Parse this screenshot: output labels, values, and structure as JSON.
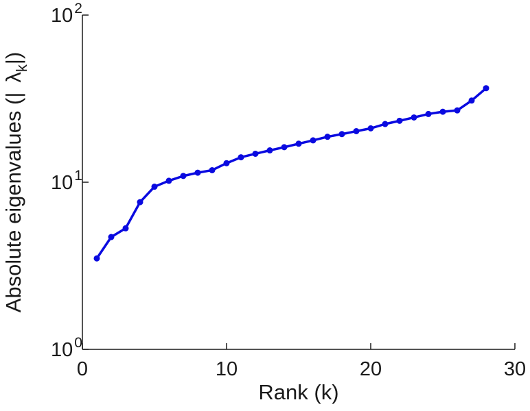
{
  "chart_data": {
    "type": "line",
    "series_name": "absolute-eigenvalues",
    "x": [
      1,
      2,
      3,
      4,
      5,
      6,
      7,
      8,
      9,
      10,
      11,
      12,
      13,
      14,
      15,
      16,
      17,
      18,
      19,
      20,
      21,
      22,
      23,
      24,
      25,
      26,
      27,
      28
    ],
    "values": [
      3.5,
      4.7,
      5.3,
      7.6,
      9.4,
      10.2,
      10.9,
      11.4,
      11.8,
      13.0,
      14.1,
      14.8,
      15.5,
      16.2,
      17.0,
      17.8,
      18.7,
      19.4,
      20.2,
      21.0,
      22.3,
      23.3,
      24.4,
      25.6,
      26.4,
      26.9,
      30.8,
      36.5
    ],
    "xlabel": "Rank (k)",
    "ylabel_prefix": "Absolute eigenvalues (|",
    "ylabel_symbol": "λ",
    "ylabel_subscript": "k",
    "ylabel_suffix": "|)",
    "x_ticks": [
      0,
      10,
      20,
      30
    ],
    "y_tick_base": "10",
    "y_tick_exponents": [
      0,
      1,
      2
    ],
    "xlim": [
      0,
      30
    ],
    "ylim_log10": [
      0,
      2
    ],
    "grid": false,
    "legend_position": "none",
    "line_color": "#0a0ae0",
    "axis_color": "#1a1a1a",
    "marker": "circle"
  }
}
